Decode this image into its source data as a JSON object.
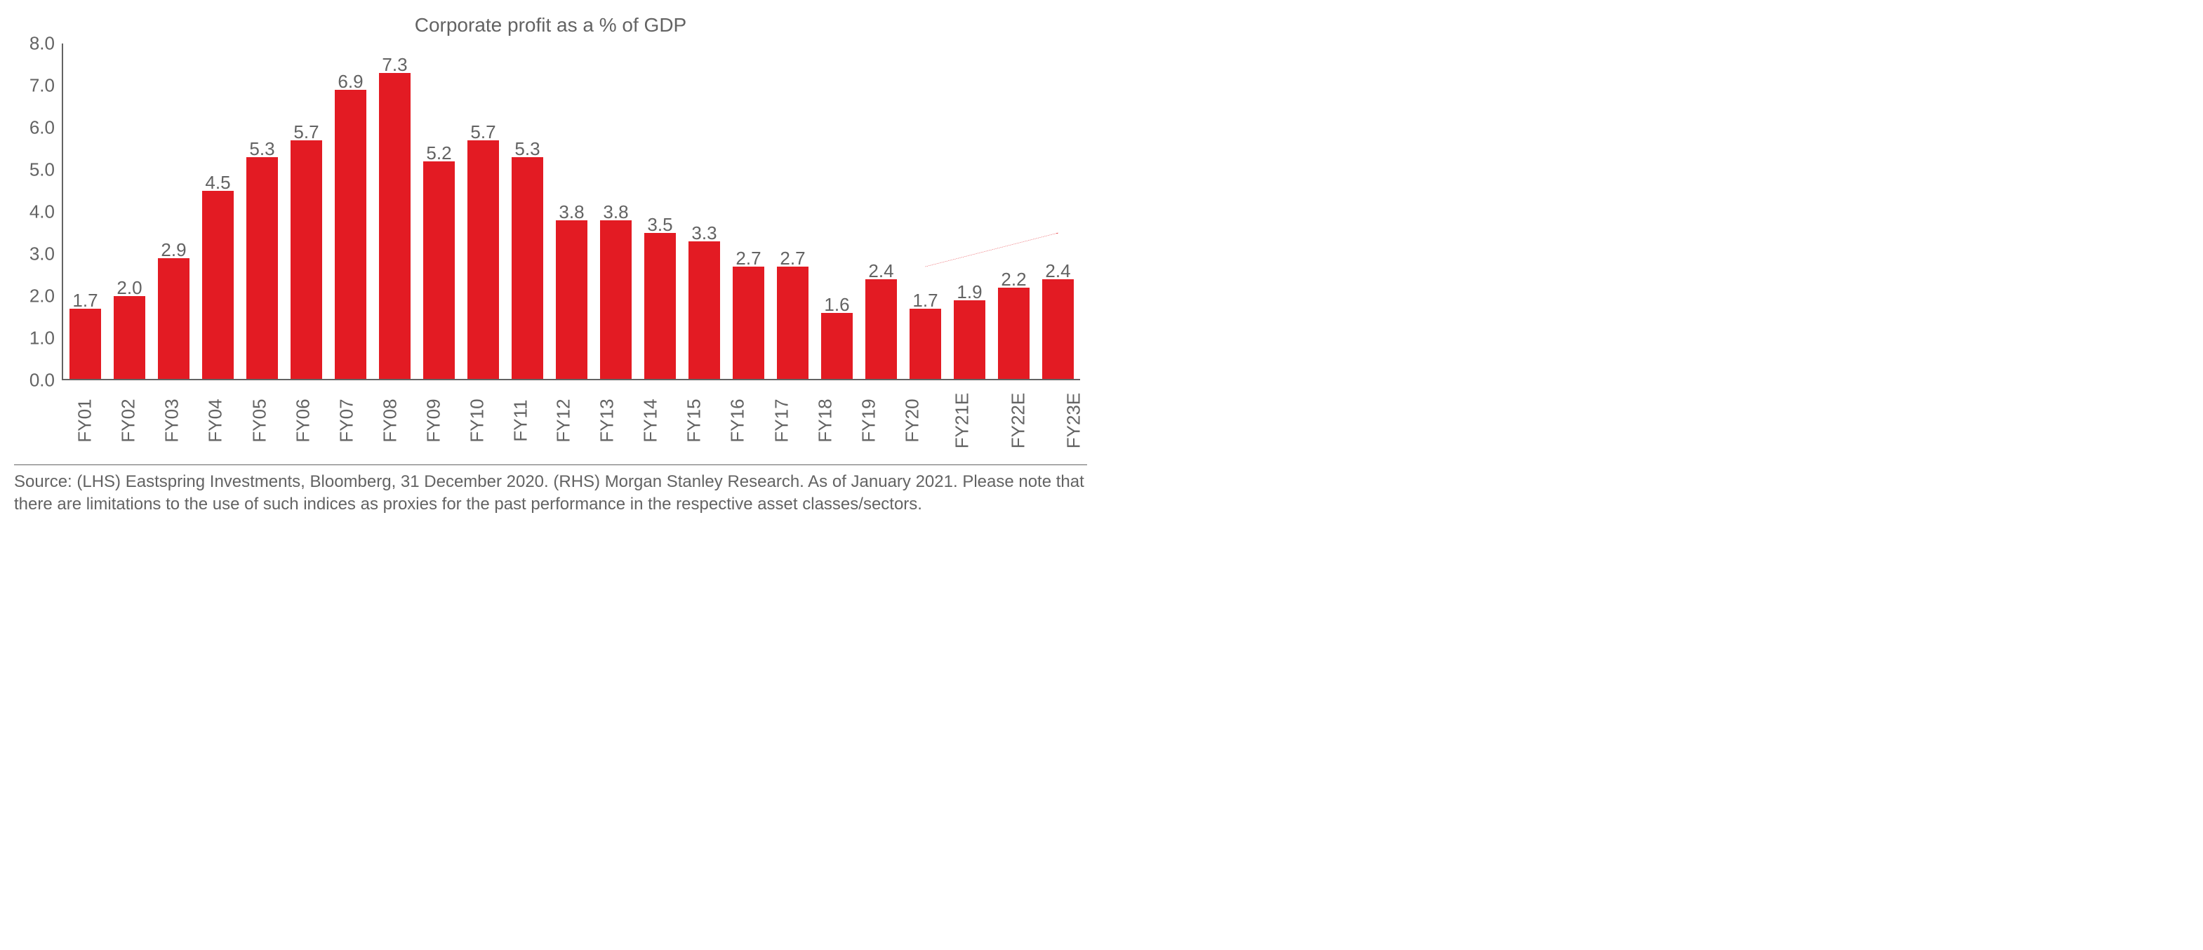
{
  "chart": {
    "type": "bar",
    "title": "Corporate profit as a % of GDP",
    "categories": [
      "FY01",
      "FY02",
      "FY03",
      "FY04",
      "FY05",
      "FY06",
      "FY07",
      "FY08",
      "FY09",
      "FY10",
      "FY11",
      "FY12",
      "FY13",
      "FY14",
      "FY15",
      "FY16",
      "FY17",
      "FY18",
      "FY19",
      "FY20",
      "FY21E",
      "FY22E",
      "FY23E"
    ],
    "values": [
      1.7,
      2.0,
      2.9,
      4.5,
      5.3,
      5.7,
      6.9,
      7.3,
      5.2,
      5.7,
      5.3,
      3.8,
      3.8,
      3.5,
      3.3,
      2.7,
      2.7,
      1.6,
      2.4,
      1.7,
      1.9,
      2.2,
      2.4
    ],
    "value_labels": [
      "1.7",
      "2.0",
      "2.9",
      "4.5",
      "5.3",
      "5.7",
      "6.9",
      "7.3",
      "5.2",
      "5.7",
      "5.3",
      "3.8",
      "3.8",
      "3.5",
      "3.3",
      "2.7",
      "2.7",
      "1.6",
      "2.4",
      "1.7",
      "1.9",
      "2.2",
      "2.4"
    ],
    "bar_color": "#e31b23",
    "ylim": [
      0.0,
      8.0
    ],
    "ytick_step": 1.0,
    "yticks": [
      "0.0",
      "1.0",
      "2.0",
      "3.0",
      "4.0",
      "5.0",
      "6.0",
      "7.0",
      "8.0"
    ],
    "axis_color": "#636363",
    "text_color": "#636363",
    "background_color": "#ffffff",
    "label_fontsize": 26,
    "bar_width": 0.72,
    "trend_arrow": {
      "color": "#e31b23",
      "dash": "6,6",
      "stroke_width": 2.5,
      "from_category_index": 19,
      "to_category_index": 22,
      "from_value": 2.7,
      "to_value": 3.5
    }
  },
  "source_text": "Source: (LHS) Eastspring Investments, Bloomberg, 31 December 2020. (RHS) Morgan Stanley Research. As of January 2021. Please note that there are limitations to the use of such indices as proxies for the past performance in the respective asset classes/sectors."
}
